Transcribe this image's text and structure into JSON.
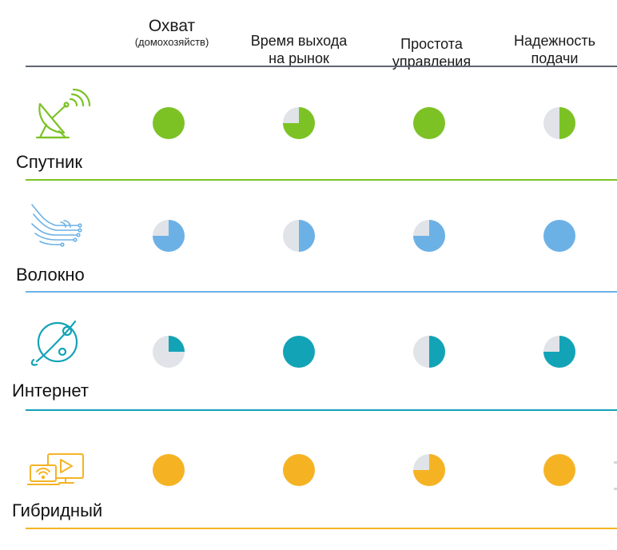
{
  "columns": [
    {
      "label": "Охват",
      "sublabel": "(домохозяйств)"
    },
    {
      "label": "Время выхода\nна рынок",
      "sublabel": ""
    },
    {
      "label": "Простота\nуправления",
      "sublabel": ""
    },
    {
      "label": "Надежность\nподачи",
      "sublabel": ""
    }
  ],
  "rows": [
    {
      "label": "Спутник",
      "icon": "satellite-dish-icon",
      "color": "#7cc225",
      "ratings": [
        1.0,
        0.75,
        1.0,
        0.5
      ]
    },
    {
      "label": "Волокно",
      "icon": "fiber-optic-icon",
      "color": "#6cb1e6",
      "ratings": [
        0.75,
        0.5,
        0.75,
        1.0
      ]
    },
    {
      "label": "Интернет",
      "icon": "internet-globe-icon",
      "color": "#13a3b6",
      "ratings": [
        0.25,
        1.0,
        0.5,
        0.75
      ]
    },
    {
      "label": "Гибридный",
      "icon": "hybrid-devices-icon",
      "color": "#f5b324",
      "ratings": [
        1.0,
        1.0,
        0.75,
        1.0
      ]
    }
  ],
  "colors": {
    "pie_background": "#e0e3e8",
    "header_rule": "#5f6770"
  }
}
